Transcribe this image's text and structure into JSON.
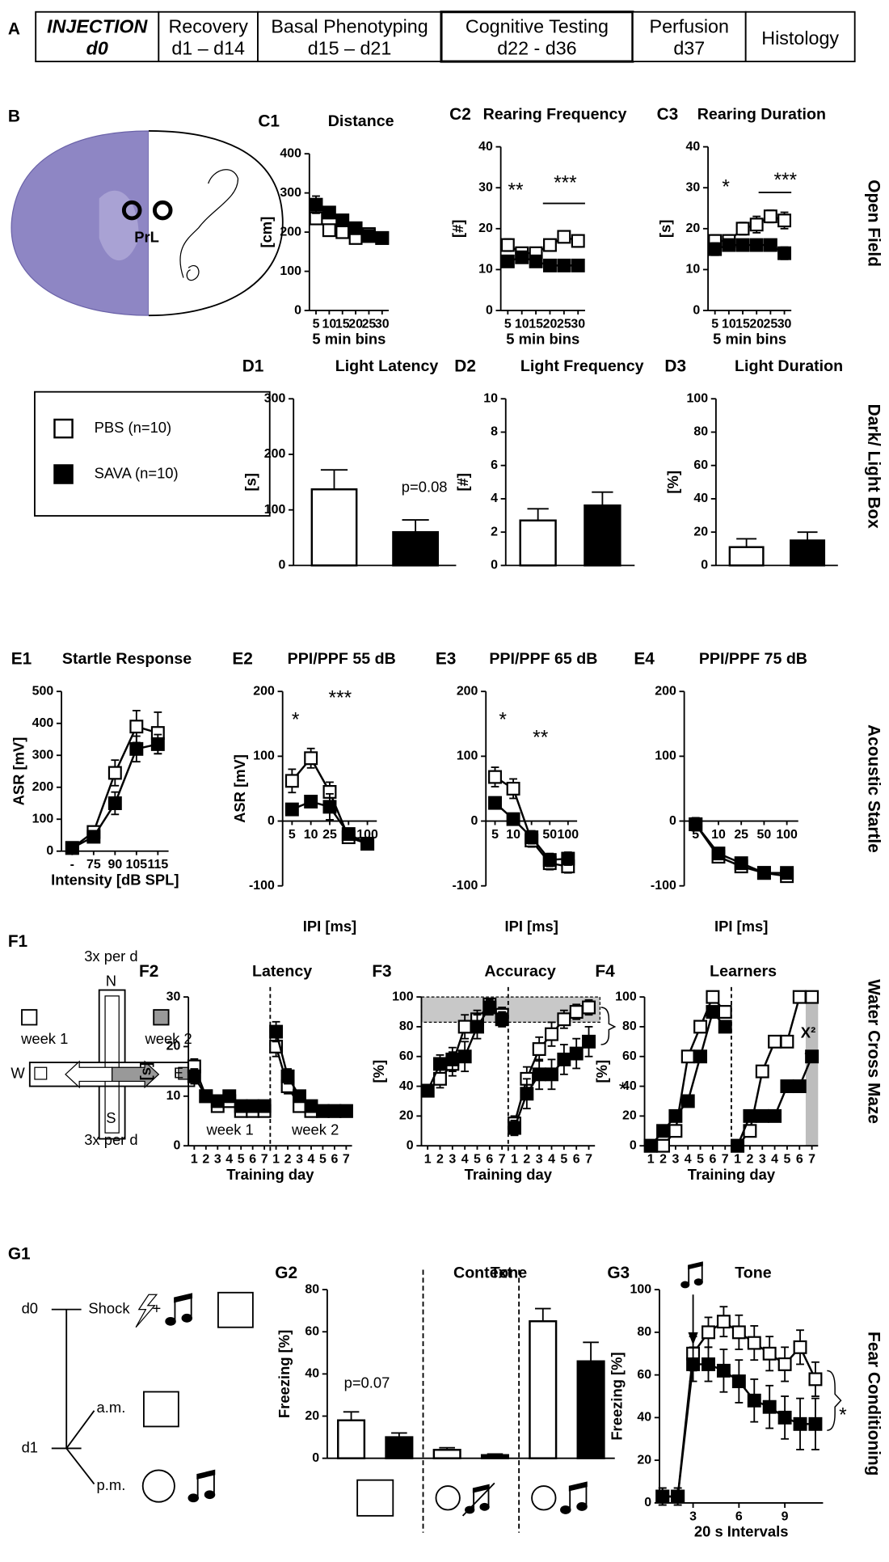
{
  "panel_labels": {
    "timeline": "A",
    "brain": "B",
    "maze": "F1",
    "protocol": "G1"
  },
  "timeline": [
    {
      "title": "INJECTION",
      "subtitle": "d0"
    },
    {
      "title": "Recovery",
      "subtitle": "d1 – d14"
    },
    {
      "title": "Basal Phenotyping",
      "subtitle": "d15 – d21"
    },
    {
      "title": "Cognitive Testing",
      "subtitle": "d22 - d36"
    },
    {
      "title": "Perfusion",
      "subtitle": "d37"
    },
    {
      "title": "Histology"
    }
  ],
  "brain": {
    "region": "PrL"
  },
  "legend": {
    "entries": [
      {
        "name": "PBS (n=10)",
        "color": "#ffffff"
      },
      {
        "name": "SAVA (n=10)",
        "color": "#000000"
      }
    ]
  },
  "row_labels": [
    "Open Field",
    "Dark/ Light Box",
    "Acoustic Startle",
    "Water Cross Maze",
    "Fear Conditioning"
  ],
  "maze": {
    "texts": [
      "3x per d",
      "N",
      "week 1",
      "week 2",
      "W",
      "E",
      "S",
      "3x per d"
    ]
  },
  "protocol": {
    "texts": [
      "d0",
      "Shock",
      "+",
      "a.m.",
      "d1",
      "p.m."
    ]
  },
  "chart_data": [
    {
      "type": "line",
      "label": "C1",
      "title": "Distance",
      "ylabel": "[cm]",
      "xlabel": "5 min bins",
      "categories": [
        "5",
        "10",
        "15",
        "20",
        "25",
        "30"
      ],
      "ylim": [
        0,
        400
      ],
      "yticks": [
        0,
        100,
        200,
        300,
        400
      ],
      "series": [
        {
          "color": "#ffffff",
          "values": [
            235,
            205,
            200,
            185,
            195,
            185
          ],
          "errors": [
            15,
            12,
            10,
            8,
            10,
            8
          ]
        },
        {
          "color": "#000000",
          "values": [
            270,
            250,
            230,
            210,
            190,
            185
          ],
          "errors": [
            22,
            15,
            15,
            12,
            10,
            10
          ]
        }
      ]
    },
    {
      "type": "line",
      "label": "C2",
      "title": "Rearing Frequency",
      "ylabel": "[#]",
      "xlabel": "5 min bins",
      "categories": [
        "5",
        "10",
        "15",
        "20",
        "25",
        "30"
      ],
      "ylim": [
        0,
        40
      ],
      "yticks": [
        0,
        10,
        20,
        30,
        40
      ],
      "annotations": [
        "**",
        "***"
      ],
      "series": [
        {
          "color": "#ffffff",
          "values": [
            16,
            14,
            14,
            16,
            18,
            17
          ],
          "errors": [
            1.5,
            1,
            1,
            1,
            1,
            1.5
          ]
        },
        {
          "color": "#000000",
          "values": [
            12,
            13,
            12,
            11,
            11,
            11
          ],
          "errors": [
            1,
            1,
            1,
            1,
            1,
            1
          ]
        }
      ]
    },
    {
      "type": "line",
      "label": "C3",
      "title": "Rearing Duration",
      "ylabel": "[s]",
      "xlabel": "5 min bins",
      "categories": [
        "5",
        "10",
        "15",
        "20",
        "25",
        "30"
      ],
      "ylim": [
        0,
        40
      ],
      "yticks": [
        0,
        10,
        20,
        30,
        40
      ],
      "annotations": [
        "*",
        "***"
      ],
      "series": [
        {
          "color": "#ffffff",
          "values": [
            17,
            17,
            20,
            21,
            23,
            22
          ],
          "errors": [
            1.5,
            1.5,
            1.5,
            2,
            1.5,
            2
          ]
        },
        {
          "color": "#000000",
          "values": [
            15,
            16,
            16,
            16,
            16,
            14
          ],
          "errors": [
            1.5,
            1,
            1,
            1,
            1,
            1.5
          ]
        }
      ]
    },
    {
      "type": "bar",
      "label": "D1",
      "title": "Light Latency",
      "ylabel": "[s]",
      "ylim": [
        0,
        300
      ],
      "yticks": [
        0,
        100,
        200,
        300
      ],
      "annotations": [
        "p=0.08"
      ],
      "series": [
        {
          "color": "#ffffff",
          "values": [
            137
          ],
          "errors": [
            35
          ]
        },
        {
          "color": "#000000",
          "values": [
            60
          ],
          "errors": [
            22
          ]
        }
      ]
    },
    {
      "type": "bar",
      "label": "D2",
      "title": "Light Frequency",
      "ylabel": "[#]",
      "ylim": [
        0,
        10
      ],
      "yticks": [
        0,
        2,
        4,
        6,
        8,
        10
      ],
      "series": [
        {
          "color": "#ffffff",
          "values": [
            2.7
          ],
          "errors": [
            0.7
          ]
        },
        {
          "color": "#000000",
          "values": [
            3.6
          ],
          "errors": [
            0.8
          ]
        }
      ]
    },
    {
      "type": "bar",
      "label": "D3",
      "title": "Light Duration",
      "ylabel": "[%]",
      "ylim": [
        0,
        100
      ],
      "yticks": [
        0,
        20,
        40,
        60,
        80,
        100
      ],
      "series": [
        {
          "color": "#ffffff",
          "values": [
            11
          ],
          "errors": [
            5
          ]
        },
        {
          "color": "#000000",
          "values": [
            15
          ],
          "errors": [
            5
          ]
        }
      ]
    },
    {
      "type": "line",
      "label": "E1",
      "title": "Startle Response",
      "ylabel": "ASR [mV]",
      "xlabel": "Intensity [dB SPL]",
      "categories": [
        "-",
        "75",
        "90",
        "105",
        "115"
      ],
      "ylim": [
        0,
        500
      ],
      "yticks": [
        0,
        100,
        200,
        300,
        400,
        500
      ],
      "series": [
        {
          "color": "#ffffff",
          "values": [
            10,
            60,
            245,
            390,
            370
          ],
          "errors": [
            5,
            10,
            40,
            50,
            65
          ]
        },
        {
          "color": "#000000",
          "values": [
            10,
            45,
            150,
            320,
            335
          ],
          "errors": [
            5,
            10,
            35,
            40,
            30
          ]
        }
      ]
    },
    {
      "type": "line",
      "label": "E2",
      "title": "PPI/PPF 55 dB",
      "ylabel": "ASR [mV]",
      "xlabel": "IPI [ms]",
      "categories": [
        "5",
        "10",
        "25",
        null,
        "100"
      ],
      "ylim": [
        -100,
        200
      ],
      "yticks": [
        -100,
        0,
        100,
        200
      ],
      "annotations": [
        "*",
        "***"
      ],
      "series": [
        {
          "color": "#ffffff",
          "values": [
            62,
            97,
            45,
            -25,
            -35
          ],
          "errors": [
            18,
            15,
            15,
            8,
            8
          ]
        },
        {
          "color": "#000000",
          "values": [
            18,
            30,
            22,
            -20,
            -35
          ],
          "errors": [
            8,
            8,
            20,
            8,
            8
          ]
        }
      ]
    },
    {
      "type": "line",
      "label": "E3",
      "title": "PPI/PPF 65 dB",
      "xlabel": "IPI [ms]",
      "categories": [
        "5",
        "10",
        null,
        "50",
        "100"
      ],
      "ylim": [
        -100,
        200
      ],
      "yticks": [
        -100,
        0,
        100,
        200
      ],
      "annotations": [
        "*",
        "**"
      ],
      "series": [
        {
          "color": "#ffffff",
          "values": [
            68,
            50,
            -30,
            -65,
            -70
          ],
          "errors": [
            15,
            15,
            10,
            10,
            10
          ]
        },
        {
          "color": "#000000",
          "values": [
            28,
            3,
            -25,
            -60,
            -58
          ],
          "errors": [
            8,
            8,
            10,
            10,
            10
          ]
        }
      ]
    },
    {
      "type": "line",
      "label": "E4",
      "title": "PPI/PPF 75 dB",
      "xlabel": "IPI [ms]",
      "categories": [
        "5",
        "10",
        "25",
        "50",
        "100"
      ],
      "ylim": [
        -100,
        200
      ],
      "yticks": [
        -100,
        0,
        100,
        200
      ],
      "series": [
        {
          "color": "#ffffff",
          "values": [
            -5,
            -55,
            -70,
            -80,
            -85
          ],
          "errors": [
            10,
            8,
            8,
            5,
            8
          ]
        },
        {
          "color": "#000000",
          "values": [
            -5,
            -50,
            -65,
            -80,
            -80
          ],
          "errors": [
            10,
            8,
            8,
            5,
            8
          ]
        }
      ]
    },
    {
      "type": "line",
      "title": "Latency",
      "label": "F2",
      "ylabel": "[s]",
      "xlabel": "Training day",
      "categories": [
        "1",
        "2",
        "3",
        "4",
        "5",
        "6",
        "7",
        "1",
        "2",
        "3",
        "4",
        "5",
        "6",
        "7"
      ],
      "ylim": [
        0,
        30
      ],
      "yticks": [
        0,
        10,
        20,
        30
      ],
      "annotations": [
        "week 1",
        "week 2"
      ],
      "series": [
        {
          "color": "#ffffff",
          "values": [
            16,
            10,
            8,
            9,
            7,
            7,
            7,
            20,
            12,
            8,
            7,
            7,
            7,
            7
          ],
          "errors": [
            1.5,
            1,
            1,
            1,
            1,
            1,
            1,
            2,
            1.5,
            1,
            1,
            1,
            1,
            1
          ]
        },
        {
          "color": "#000000",
          "values": [
            14,
            10,
            9,
            10,
            8,
            8,
            8,
            23,
            14,
            10,
            8,
            7,
            7,
            7
          ],
          "errors": [
            1.5,
            1,
            1,
            1,
            1,
            1,
            1,
            2,
            1.5,
            1,
            1,
            1,
            1,
            1
          ]
        }
      ]
    },
    {
      "type": "line",
      "title": "Accuracy",
      "label": "F3",
      "ylabel": "[%]",
      "xlabel": "Training day",
      "categories": [
        "1",
        "2",
        "3",
        "4",
        "5",
        "6",
        "7",
        "1",
        "2",
        "3",
        "4",
        "5",
        "6",
        "7"
      ],
      "ylim": [
        0,
        100
      ],
      "yticks": [
        0,
        20,
        40,
        60,
        80,
        100
      ],
      "band": [
        83,
        100
      ],
      "annotations": [
        "*"
      ],
      "series": [
        {
          "color": "#ffffff",
          "values": [
            37,
            45,
            55,
            80,
            85,
            95,
            88,
            15,
            45,
            65,
            75,
            85,
            90,
            93
          ],
          "errors": [
            4,
            6,
            8,
            8,
            6,
            4,
            5,
            5,
            8,
            8,
            8,
            6,
            5,
            5
          ]
        },
        {
          "color": "#000000",
          "values": [
            37,
            55,
            58,
            60,
            80,
            93,
            85,
            12,
            35,
            48,
            48,
            58,
            62,
            70
          ],
          "errors": [
            4,
            6,
            8,
            10,
            8,
            5,
            5,
            5,
            10,
            10,
            10,
            10,
            10,
            10
          ]
        }
      ]
    },
    {
      "type": "line",
      "title": "Learners",
      "label": "F4",
      "ylabel": "[%]",
      "xlabel": "Training day",
      "categories": [
        "1",
        "2",
        "3",
        "4",
        "5",
        "6",
        "7",
        "1",
        "2",
        "3",
        "4",
        "5",
        "6",
        "7"
      ],
      "ylim": [
        0,
        100
      ],
      "yticks": [
        0,
        20,
        40,
        60,
        80,
        100
      ],
      "highlight_last": true,
      "annotations": [
        "X²",
        "*"
      ],
      "series": [
        {
          "color": "#ffffff",
          "values": [
            0,
            0,
            10,
            60,
            80,
            100,
            90,
            0,
            10,
            50,
            70,
            70,
            100,
            100
          ]
        },
        {
          "color": "#000000",
          "values": [
            0,
            10,
            20,
            30,
            60,
            90,
            80,
            0,
            20,
            20,
            20,
            40,
            40,
            60
          ]
        }
      ]
    },
    {
      "type": "bar",
      "label": "G2",
      "title": "Context",
      "ylabel": "Freezing [%]",
      "ylim": [
        0,
        80
      ],
      "yticks": [
        0,
        20,
        40,
        60,
        80
      ],
      "annotations": [
        "p=0.07",
        "Tone"
      ],
      "series": [
        {
          "color": "#ffffff",
          "values": [
            18,
            4,
            65
          ],
          "errors": [
            4,
            1,
            6
          ]
        },
        {
          "color": "#000000",
          "values": [
            10,
            1.5,
            46
          ],
          "errors": [
            2,
            0.5,
            9
          ]
        }
      ]
    },
    {
      "type": "line",
      "label": "G3",
      "title": "Tone",
      "ylabel": "Freezing [%]",
      "xlabel": "20 s Intervals",
      "x": [
        1,
        2,
        3,
        4,
        5,
        6,
        7,
        8,
        9,
        10,
        11
      ],
      "xlim": [
        0.8,
        11.5
      ],
      "xticks": [
        3,
        6,
        9
      ],
      "ylim": [
        0,
        100
      ],
      "yticks": [
        0,
        20,
        40,
        60,
        80,
        100
      ],
      "annotations": [
        "*"
      ],
      "series": [
        {
          "color": "#ffffff",
          "values": [
            3,
            3,
            70,
            80,
            85,
            80,
            75,
            70,
            65,
            73,
            58
          ],
          "errors": [
            4,
            4,
            8,
            7,
            7,
            8,
            8,
            8,
            8,
            8,
            8
          ]
        },
        {
          "color": "#000000",
          "values": [
            3,
            3,
            65,
            65,
            62,
            57,
            48,
            45,
            40,
            37,
            37
          ],
          "errors": [
            4,
            4,
            8,
            8,
            10,
            10,
            10,
            10,
            10,
            12,
            12
          ]
        }
      ]
    }
  ]
}
